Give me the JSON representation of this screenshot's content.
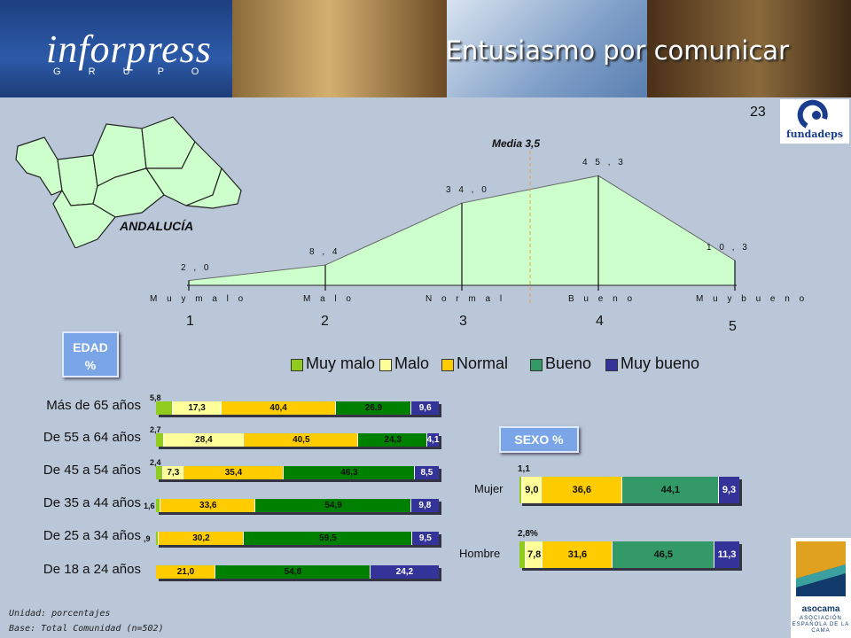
{
  "header": {
    "logo": "inforpress",
    "logo_sub": "G R U P O",
    "title": "Entusiasmo por comunicar"
  },
  "page_number": "23",
  "logos": {
    "fundadeps": "fundadeps",
    "asocama": "asocama",
    "asocama_sub": "ASOCIACIÓN ESPAÑOLA DE LA CAMA"
  },
  "map_label": "ANDALUCÍA",
  "buttons": {
    "edad": "EDAD %",
    "sexo": "SEXO %"
  },
  "footnote": {
    "line1": "Unidad: porcentajes",
    "line2": "Base: Total Comunidad (n=502)"
  },
  "colors": {
    "muy_malo": "#8fcc1e",
    "malo": "#ffff99",
    "normal": "#ffcc00",
    "bueno_edad": "#008000",
    "bueno_sexo": "#339966",
    "muy_bueno": "#333399",
    "area": "#ccffcc",
    "background": "#b9c7d9"
  },
  "chart_data": [
    {
      "type": "area",
      "categories": [
        "Muy malo",
        "Malo",
        "Normal",
        "Bueno",
        "Muy bueno"
      ],
      "tick_labels": [
        "M u y  m a l o",
        "M a l o",
        "N o r m a l",
        "B u e n o",
        "M u y  b u e n o"
      ],
      "values": [
        2.0,
        8.4,
        34.0,
        45.3,
        10.3
      ],
      "value_labels": [
        "2 , 0",
        "8 , 4",
        "3 4 , 0",
        "4 5 , 3",
        "1 0 , 3"
      ],
      "scale_numbers": [
        "1",
        "2",
        "3",
        "4",
        "5"
      ],
      "mean": 3.5,
      "mean_label": "Media 3,5"
    },
    {
      "type": "bar",
      "stacked": true,
      "orientation": "horizontal",
      "title": "EDAD %",
      "categories": [
        "Más de 65 años",
        "De 55 a 64 años",
        "De 45 a 54 años",
        "De  35 a 44 años",
        "De 25 a 34 años",
        "De 18 a 24 años"
      ],
      "series": [
        {
          "name": "Muy malo",
          "values": [
            5.8,
            2.7,
            2.4,
            1.6,
            0.9,
            0
          ]
        },
        {
          "name": "Malo",
          "values": [
            17.3,
            28.4,
            7.3,
            0,
            0,
            0
          ]
        },
        {
          "name": "Normal",
          "values": [
            40.4,
            40.5,
            35.4,
            33.6,
            30.2,
            21.0
          ]
        },
        {
          "name": "Bueno",
          "values": [
            26.9,
            24.3,
            46.3,
            54.9,
            59.5,
            54.8
          ]
        },
        {
          "name": "Muy bueno",
          "values": [
            9.6,
            4.1,
            8.5,
            9.8,
            9.5,
            24.2
          ]
        }
      ],
      "labels": [
        [
          "5,8",
          "17,3",
          "40,4",
          "26,9",
          "9,6"
        ],
        [
          "2,7",
          "28,4",
          "40,5",
          "24,3",
          "4,1"
        ],
        [
          "2,4",
          "7,3",
          "35,4",
          "46,3",
          "8,5"
        ],
        [
          "1,6",
          "",
          "33,6",
          "54,9",
          "9,8"
        ],
        [
          ",9",
          "",
          "30,2",
          "59,5",
          "9,5"
        ],
        [
          "",
          "",
          "21,0",
          "54,8",
          "24,2"
        ]
      ]
    },
    {
      "type": "bar",
      "stacked": true,
      "orientation": "horizontal",
      "title": "SEXO %",
      "categories": [
        "Mujer",
        "Hombre"
      ],
      "series": [
        {
          "name": "Muy malo",
          "values": [
            1.1,
            2.8
          ]
        },
        {
          "name": "Malo",
          "values": [
            9.0,
            7.8
          ]
        },
        {
          "name": "Normal",
          "values": [
            36.6,
            31.6
          ]
        },
        {
          "name": "Bueno",
          "values": [
            44.1,
            46.5
          ]
        },
        {
          "name": "Muy bueno",
          "values": [
            9.3,
            11.3
          ]
        }
      ],
      "labels": [
        [
          "1,1",
          "9,0",
          "36,6",
          "44,1",
          "9,3"
        ],
        [
          "2,8%",
          "7,8",
          "31,6",
          "46,5",
          "11,3"
        ]
      ]
    }
  ]
}
